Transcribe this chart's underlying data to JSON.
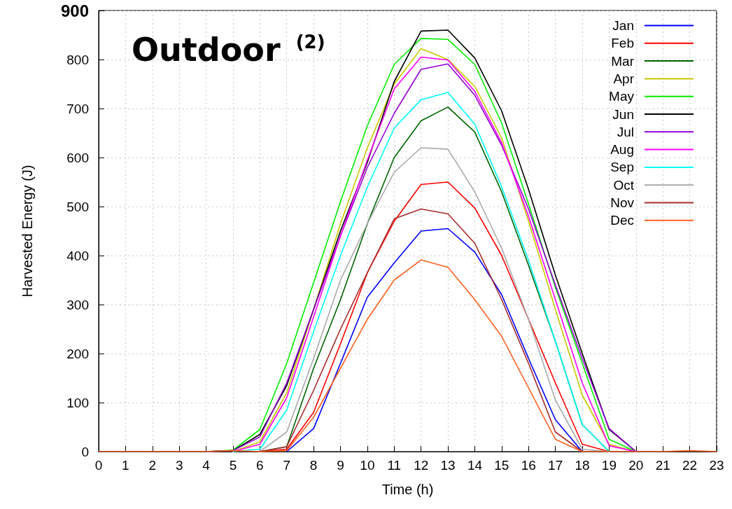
{
  "chart_data": {
    "type": "line",
    "title": "Outdoor $^{(2)}$",
    "xlabel": "Time (h)",
    "ylabel": "Harvested Energy (J)",
    "x": [
      0,
      1,
      2,
      3,
      4,
      5,
      6,
      7,
      8,
      9,
      10,
      11,
      12,
      13,
      14,
      15,
      16,
      17,
      18,
      19,
      20,
      21,
      22,
      23
    ],
    "xlim": [
      0,
      23
    ],
    "xticks": [
      0,
      1,
      2,
      3,
      4,
      5,
      6,
      7,
      8,
      9,
      10,
      11,
      12,
      13,
      14,
      15,
      16,
      17,
      18,
      19,
      20,
      21,
      22,
      23
    ],
    "ylim": [
      0,
      900
    ],
    "yticks": [
      0,
      100,
      200,
      300,
      400,
      500,
      600,
      700,
      800,
      900
    ],
    "grid": true,
    "legend": "top right",
    "marker": "none",
    "line_style": "solid",
    "series": [
      {
        "name": "Jan",
        "color": "#0000ff",
        "values": [
          null,
          null,
          null,
          null,
          null,
          null,
          null,
          0,
          47,
          180,
          315,
          385,
          450,
          455,
          407,
          320,
          190,
          65,
          0,
          null,
          null,
          null,
          null,
          null
        ]
      },
      {
        "name": "Feb",
        "color": "#ff0000",
        "values": [
          null,
          null,
          null,
          null,
          null,
          null,
          0,
          5,
          80,
          220,
          365,
          470,
          545,
          550,
          497,
          400,
          270,
          140,
          15,
          0,
          null,
          null,
          null,
          null
        ]
      },
      {
        "name": "Mar",
        "color": "#006400",
        "values": [
          null,
          null,
          null,
          null,
          null,
          null,
          0,
          10,
          170,
          310,
          465,
          600,
          675,
          703,
          652,
          530,
          380,
          225,
          55,
          0,
          null,
          null,
          null,
          null
        ]
      },
      {
        "name": "Apr",
        "color": "#c8c800",
        "values": [
          null,
          null,
          null,
          null,
          null,
          0,
          20,
          120,
          290,
          465,
          620,
          750,
          822,
          800,
          745,
          640,
          470,
          290,
          115,
          15,
          0,
          null,
          null,
          null
        ]
      },
      {
        "name": "May",
        "color": "#00ee00",
        "values": [
          null,
          null,
          null,
          null,
          0,
          3,
          45,
          180,
          345,
          510,
          665,
          790,
          843,
          841,
          790,
          670,
          505,
          335,
          180,
          25,
          0,
          null,
          null,
          null
        ]
      },
      {
        "name": "Jun",
        "color": "#000000",
        "values": [
          null,
          null,
          null,
          null,
          0,
          2,
          35,
          135,
          290,
          450,
          590,
          755,
          858,
          860,
          803,
          695,
          535,
          360,
          200,
          45,
          0,
          null,
          null,
          null
        ]
      },
      {
        "name": "Jul",
        "color": "#9400d3",
        "values": [
          null,
          null,
          null,
          null,
          0,
          2,
          30,
          140,
          290,
          440,
          580,
          690,
          780,
          791,
          727,
          625,
          495,
          340,
          190,
          47,
          0,
          null,
          null,
          null
        ]
      },
      {
        "name": "Aug",
        "color": "#ff00ff",
        "values": [
          null,
          null,
          null,
          null,
          null,
          0,
          15,
          110,
          275,
          440,
          595,
          740,
          805,
          799,
          735,
          630,
          480,
          310,
          140,
          12,
          0,
          null,
          null,
          null
        ]
      },
      {
        "name": "Sep",
        "color": "#00ffff",
        "values": [
          null,
          null,
          null,
          null,
          null,
          0,
          5,
          85,
          245,
          400,
          540,
          660,
          718,
          733,
          668,
          540,
          390,
          225,
          55,
          0,
          null,
          null,
          null,
          null
        ]
      },
      {
        "name": "Oct",
        "color": "#aaaaaa",
        "values": [
          null,
          null,
          null,
          null,
          null,
          null,
          0,
          40,
          190,
          350,
          465,
          570,
          620,
          617,
          530,
          415,
          270,
          105,
          5,
          0,
          null,
          null,
          null,
          null
        ]
      },
      {
        "name": "Nov",
        "color": "#a52a2a",
        "values": [
          null,
          null,
          null,
          null,
          null,
          null,
          0,
          10,
          125,
          250,
          365,
          475,
          495,
          485,
          425,
          310,
          180,
          40,
          0,
          null,
          null,
          null,
          null,
          null
        ]
      },
      {
        "name": "Dec",
        "color": "#ff6020",
        "values": [
          0,
          0,
          0,
          0,
          0,
          2,
          0,
          2,
          70,
          170,
          270,
          350,
          391,
          376,
          310,
          235,
          130,
          25,
          0,
          0,
          0,
          0,
          2,
          0
        ]
      }
    ]
  }
}
